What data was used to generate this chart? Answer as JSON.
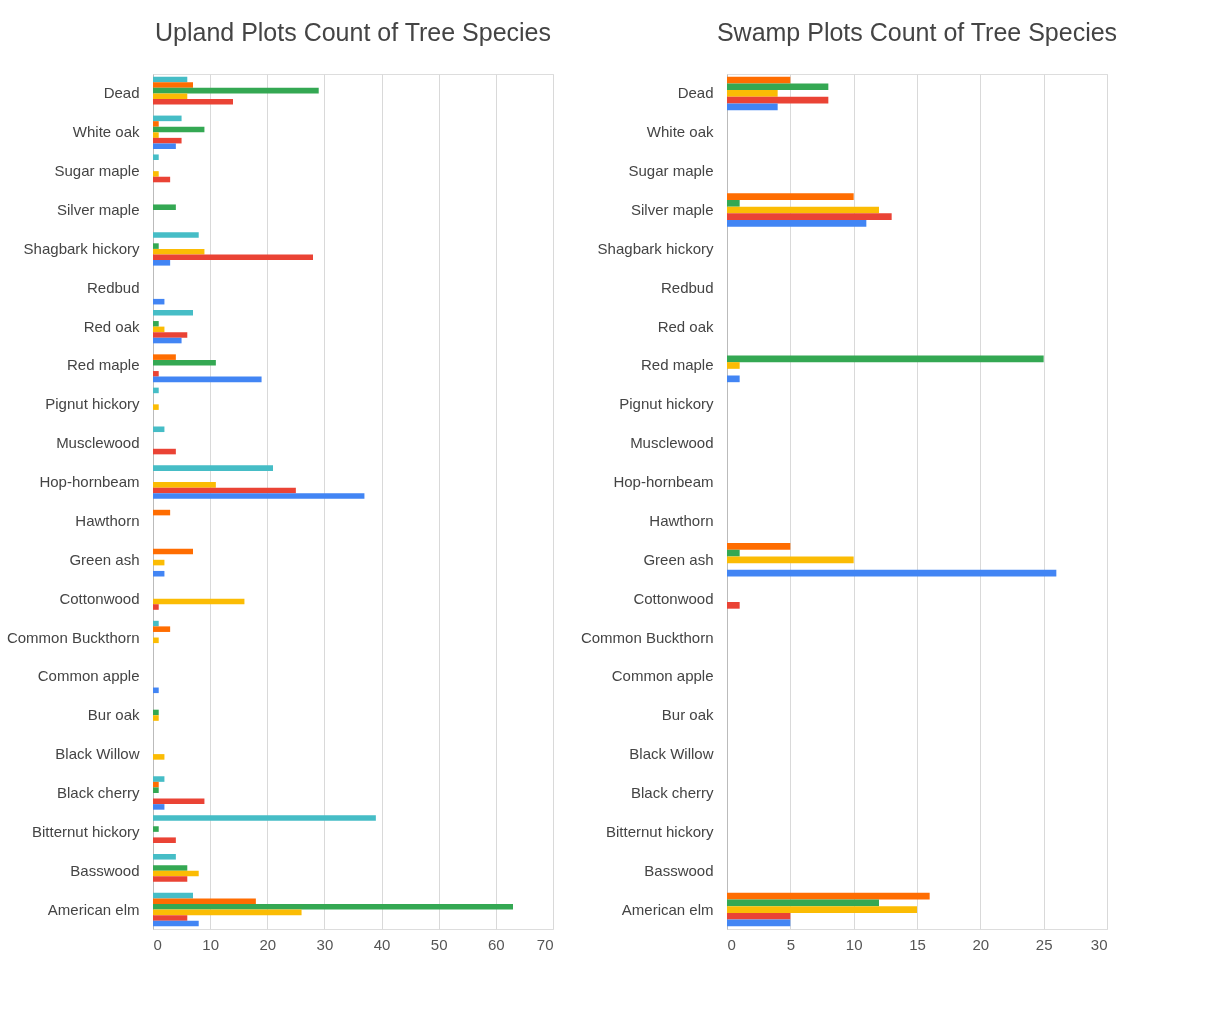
{
  "chart_data": [
    {
      "type": "bar",
      "orientation": "horizontal",
      "title": "Upland Plots Count of Tree Species",
      "categories": [
        "Dead",
        "White oak",
        "Sugar maple",
        "Silver maple",
        "Shagbark hickory",
        "Redbud",
        "Red oak",
        "Red maple",
        "Pignut hickory",
        "Musclewood",
        "Hop-hornbeam",
        "Hawthorn",
        "Green ash",
        "Cottonwood",
        "Common Buckthorn",
        "Common apple",
        "Bur oak",
        "Black Willow",
        "Black cherry",
        "Bitternut hickory",
        "Basswood",
        "American elm"
      ],
      "series": [
        {
          "color": "#46bdc6",
          "values": [
            6,
            5,
            1,
            null,
            8,
            null,
            7,
            null,
            1,
            2,
            21,
            null,
            null,
            null,
            1,
            null,
            null,
            null,
            2,
            39,
            4,
            7
          ]
        },
        {
          "color": "#ff6d01",
          "values": [
            7,
            1,
            null,
            null,
            null,
            null,
            null,
            4,
            null,
            null,
            null,
            3,
            7,
            null,
            3,
            null,
            null,
            null,
            1,
            null,
            null,
            18
          ]
        },
        {
          "color": "#34a853",
          "values": [
            29,
            9,
            null,
            4,
            1,
            null,
            1,
            11,
            null,
            null,
            null,
            null,
            null,
            null,
            null,
            null,
            1,
            null,
            1,
            1,
            6,
            63
          ]
        },
        {
          "color": "#fbbc04",
          "values": [
            6,
            1,
            1,
            null,
            9,
            null,
            2,
            null,
            1,
            null,
            11,
            null,
            2,
            16,
            1,
            null,
            1,
            2,
            null,
            null,
            8,
            26
          ]
        },
        {
          "color": "#ea4335",
          "values": [
            14,
            5,
            3,
            null,
            28,
            null,
            6,
            1,
            null,
            4,
            25,
            null,
            null,
            1,
            null,
            null,
            null,
            null,
            9,
            4,
            6,
            6
          ]
        },
        {
          "color": "#4285f4",
          "values": [
            null,
            4,
            null,
            null,
            3,
            2,
            5,
            19,
            null,
            null,
            37,
            null,
            2,
            null,
            null,
            1,
            null,
            null,
            2,
            null,
            null,
            8
          ]
        }
      ],
      "xlim": [
        0,
        70
      ],
      "xticks": [
        0,
        10,
        20,
        30,
        40,
        50,
        60,
        70
      ],
      "grid": "x",
      "legend": false
    },
    {
      "type": "bar",
      "orientation": "horizontal",
      "title": "Swamp Plots Count of Tree Species",
      "categories": [
        "Dead",
        "White oak",
        "Sugar maple",
        "Silver maple",
        "Shagbark hickory",
        "Redbud",
        "Red oak",
        "Red maple",
        "Pignut hickory",
        "Musclewood",
        "Hop-hornbeam",
        "Hawthorn",
        "Green ash",
        "Cottonwood",
        "Common Buckthorn",
        "Common apple",
        "Bur oak",
        "Black Willow",
        "Black cherry",
        "Bitternut hickory",
        "Basswood",
        "American elm"
      ],
      "series": [
        {
          "color": "#ff6d01",
          "values": [
            5,
            null,
            null,
            10,
            null,
            null,
            null,
            null,
            null,
            null,
            null,
            null,
            5,
            null,
            null,
            null,
            null,
            null,
            null,
            null,
            null,
            16
          ]
        },
        {
          "color": "#34a853",
          "values": [
            8,
            null,
            null,
            1,
            null,
            null,
            null,
            25,
            null,
            null,
            null,
            null,
            1,
            null,
            null,
            null,
            null,
            null,
            null,
            null,
            null,
            12
          ]
        },
        {
          "color": "#fbbc04",
          "values": [
            4,
            null,
            null,
            12,
            null,
            null,
            null,
            1,
            null,
            null,
            null,
            null,
            10,
            null,
            null,
            null,
            null,
            null,
            null,
            null,
            null,
            15
          ]
        },
        {
          "color": "#ea4335",
          "values": [
            8,
            null,
            null,
            13,
            null,
            null,
            null,
            null,
            null,
            null,
            null,
            null,
            null,
            1,
            null,
            null,
            null,
            null,
            null,
            null,
            null,
            5
          ]
        },
        {
          "color": "#4285f4",
          "values": [
            4,
            null,
            null,
            11,
            null,
            null,
            null,
            1,
            null,
            null,
            null,
            null,
            26,
            null,
            null,
            null,
            null,
            null,
            null,
            null,
            null,
            5
          ]
        }
      ],
      "xlim": [
        0,
        30
      ],
      "xticks": [
        0,
        5,
        10,
        15,
        20,
        25,
        30
      ],
      "grid": "x",
      "legend": false
    }
  ]
}
